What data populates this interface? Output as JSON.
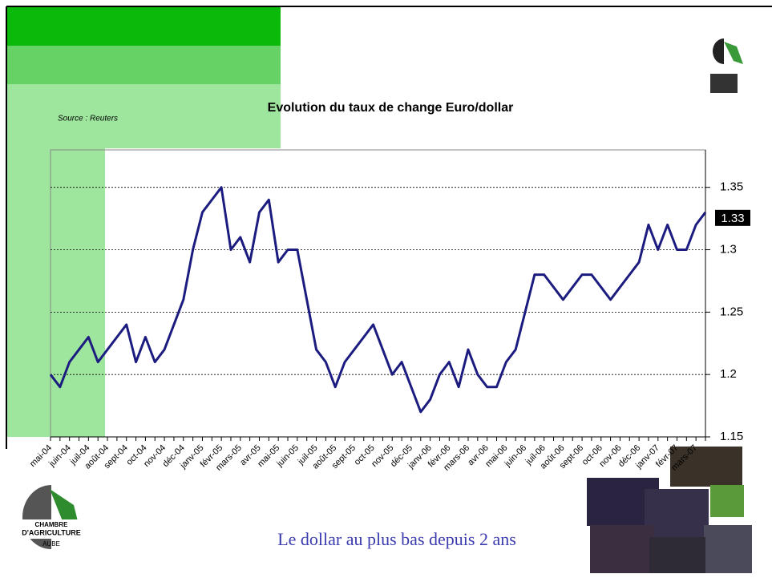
{
  "chart_data": {
    "type": "line",
    "title": "Evolution du taux de change Euro/dollar",
    "source": "Source : Reuters",
    "categories": [
      "mai-04",
      null,
      "juin-04",
      null,
      "juil-04",
      null,
      "août-04",
      null,
      "sept-04",
      null,
      "oct-04",
      null,
      "nov-04",
      null,
      "déc-04",
      null,
      "janv-05",
      null,
      "févr-05",
      null,
      "mars-05",
      null,
      "avr-05",
      null,
      "mai-05",
      null,
      "juin-05",
      null,
      "juil-05",
      null,
      "août-05",
      null,
      "sept-05",
      null,
      "oct-05",
      null,
      "nov-05",
      null,
      "déc-05",
      null,
      "janv-06",
      null,
      "févr-06",
      null,
      "mars-06",
      null,
      "avr-06",
      null,
      "mai-06",
      null,
      "juin-06",
      null,
      "juil-06",
      null,
      "août-06",
      null,
      "sept-06",
      null,
      "oct-06",
      null,
      "nov-06",
      null,
      "déc-06",
      null,
      "janv-07",
      null,
      "févr-07",
      null,
      "mars-07",
      null
    ],
    "series": [
      {
        "color": "#1c1c80",
        "values": [
          1.2,
          1.19,
          1.21,
          1.22,
          1.23,
          1.21,
          1.22,
          1.23,
          1.24,
          1.21,
          1.23,
          1.21,
          1.22,
          1.24,
          1.26,
          1.3,
          1.33,
          1.34,
          1.35,
          1.3,
          1.31,
          1.29,
          1.33,
          1.34,
          1.29,
          1.3,
          1.3,
          1.26,
          1.22,
          1.21,
          1.19,
          1.21,
          1.22,
          1.23,
          1.24,
          1.22,
          1.2,
          1.21,
          1.19,
          1.17,
          1.18,
          1.2,
          1.21,
          1.19,
          1.22,
          1.2,
          1.19,
          1.19,
          1.21,
          1.22,
          1.25,
          1.28,
          1.28,
          1.27,
          1.26,
          1.27,
          1.28,
          1.28,
          1.27,
          1.26,
          1.27,
          1.28,
          1.29,
          1.32,
          1.3,
          1.32,
          1.3,
          1.3,
          1.32,
          1.33
        ]
      }
    ],
    "ylim": [
      1.15,
      1.38
    ],
    "yticks": [
      1.15,
      1.2,
      1.25,
      1.3,
      1.35
    ],
    "grid": true
  },
  "slide": {
    "caption": "Le dollar au plus bas depuis 2 ans",
    "logo_line1": "CHAMBRE",
    "logo_line2": "D'AGRICULTURE",
    "logo_line3": "AUBE"
  }
}
